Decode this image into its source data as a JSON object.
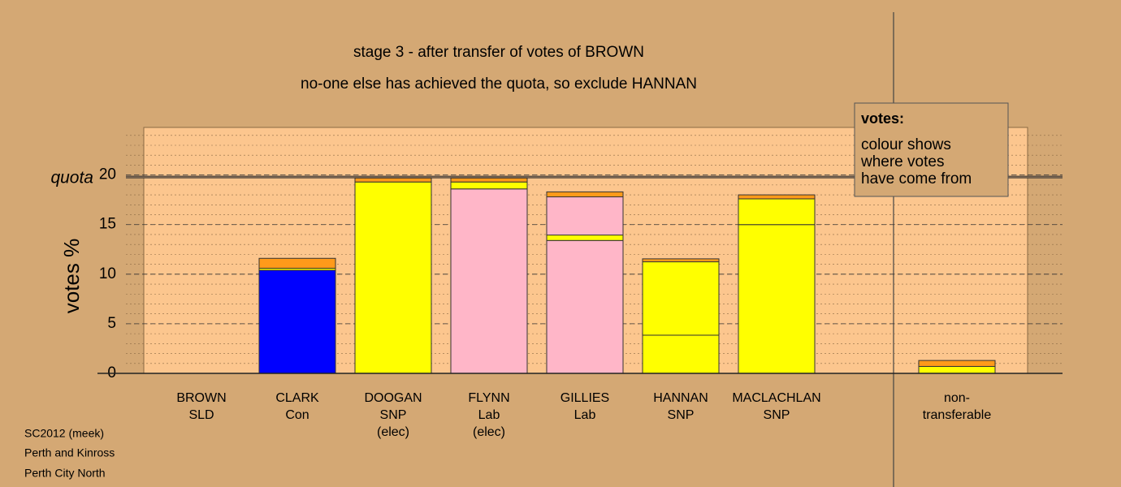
{
  "chart_data": {
    "type": "stacked_bar",
    "title": "stage 3 - after transfer of votes of BROWN",
    "subtitle": "no-one else has achieved the quota, so exclude HANNAN",
    "y_label": "votes %",
    "quota_label": "quota",
    "quota": 19.8,
    "categories": [
      [
        "BROWN",
        "SLD"
      ],
      [
        "CLARK",
        "Con"
      ],
      [
        "DOOGAN",
        "SNP",
        "(elec)"
      ],
      [
        "FLYNN",
        "Lab",
        "(elec)"
      ],
      [
        "GILLIES",
        "Lab"
      ],
      [
        "HANNAN",
        "SNP"
      ],
      [
        "MACLACHLAN",
        "SNP"
      ],
      [
        "non-",
        "transferable"
      ]
    ],
    "series": [
      {
        "colors": [
          "#0000ff",
          "#0000ff",
          "#ffff00",
          "#ffb6c8",
          "#ffb6c8",
          "#ffff00",
          "#ffff00",
          "#ffff00"
        ],
        "values": [
          0,
          10.4,
          19.3,
          18.6,
          13.4,
          3.85,
          15.0,
          0
        ]
      },
      {
        "color": "#ffff00",
        "values": [
          0,
          0.2,
          0,
          0.7,
          0.55,
          7.4,
          2.6,
          0.7
        ]
      },
      {
        "color": "#ffb6c8",
        "values": [
          0,
          0,
          0,
          0,
          3.85,
          0,
          0,
          0
        ]
      },
      {
        "color": "#ff9a1a",
        "values": [
          0,
          1.0,
          0.4,
          0.4,
          0.5,
          0.3,
          0.4,
          0.6
        ]
      }
    ],
    "ylim": [
      0,
      24.8
    ],
    "yticks": [
      0,
      5,
      10,
      15,
      20
    ],
    "grid": true,
    "minor_grid": 1,
    "legend": {
      "title": "votes:",
      "lines": [
        "colour shows",
        "where votes",
        "have come from"
      ]
    },
    "footer": [
      "SC2012 (meek)",
      "Perth and Kinross",
      "Perth City North"
    ]
  }
}
